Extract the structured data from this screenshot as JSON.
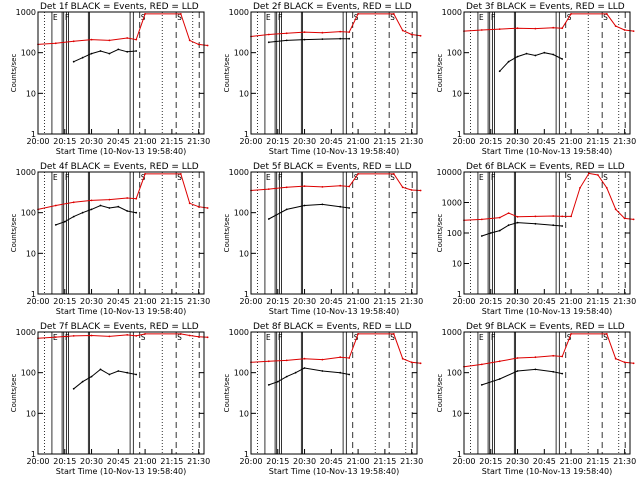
{
  "colors": {
    "events": "#000000",
    "lld": "#dd0000",
    "axis": "#000000",
    "background": "#ffffff"
  },
  "shared": {
    "xlabel": "Start Time (10-Nov-13 19:58:40)",
    "ylabel": "Counts/sec",
    "x_tick_labels": [
      "20:00",
      "20:15",
      "20:30",
      "20:45",
      "21:00",
      "21:15",
      "21:30"
    ],
    "x_range_hours": [
      20.0,
      21.55
    ],
    "ylim": [
      1,
      1000
    ],
    "y_scale": "log",
    "y_tick_labels": [
      "1",
      "10",
      "100",
      "1000"
    ],
    "y_tick_labels_wide": [
      "1",
      "10",
      "100",
      "1000",
      "10000"
    ],
    "solid_vlines_hours": [
      20.13,
      20.225,
      20.24,
      20.265,
      20.285,
      20.47,
      20.48,
      20.86,
      20.89
    ],
    "dashed_vlines_hours": [
      20.95,
      21.29,
      21.505
    ],
    "dotted_vlines_hours": [
      20.06,
      21.16,
      21.445
    ],
    "marker_letters": [
      "E",
      "F",
      "S",
      "S"
    ]
  },
  "chart_data": [
    {
      "type": "line",
      "title": "Det 1f BLACK = Events, RED = LLD",
      "ylim": [
        1,
        1000
      ],
      "series": [
        {
          "name": "Events",
          "color": "#000000",
          "x": [
            "20:20",
            "20:25",
            "20:30",
            "20:35",
            "20:40",
            "20:45",
            "20:50",
            "20:55"
          ],
          "values": [
            60,
            75,
            95,
            110,
            95,
            120,
            105,
            110
          ]
        },
        {
          "name": "LLD",
          "color": "#dd0000",
          "x": [
            "20:00",
            "20:10",
            "20:20",
            "20:30",
            "20:40",
            "20:50",
            "20:55",
            "21:00",
            "21:20",
            "21:25",
            "21:30",
            "21:35"
          ],
          "values": [
            160,
            170,
            190,
            210,
            200,
            230,
            210,
            900,
            900,
            200,
            160,
            150
          ]
        }
      ]
    },
    {
      "type": "line",
      "title": "Det 2f BLACK = Events, RED = LLD",
      "ylim": [
        1,
        1000
      ],
      "series": [
        {
          "name": "Events",
          "color": "#000000",
          "x": [
            "20:10",
            "20:20",
            "20:30",
            "20:40",
            "20:50",
            "20:55"
          ],
          "values": [
            180,
            200,
            210,
            215,
            220,
            220
          ]
        },
        {
          "name": "LLD",
          "color": "#dd0000",
          "x": [
            "20:00",
            "20:10",
            "20:20",
            "20:30",
            "20:40",
            "20:50",
            "20:55",
            "21:00",
            "21:20",
            "21:25",
            "21:30",
            "21:35"
          ],
          "values": [
            250,
            280,
            300,
            320,
            310,
            330,
            320,
            900,
            900,
            350,
            280,
            260
          ]
        }
      ]
    },
    {
      "type": "line",
      "title": "Det 3f BLACK = Events, RED = LLD",
      "ylim": [
        1,
        1000
      ],
      "series": [
        {
          "name": "Events",
          "color": "#000000",
          "x": [
            "20:20",
            "20:25",
            "20:30",
            "20:35",
            "20:40",
            "20:45",
            "20:50",
            "20:55"
          ],
          "values": [
            35,
            60,
            80,
            95,
            85,
            100,
            90,
            70
          ]
        },
        {
          "name": "LLD",
          "color": "#dd0000",
          "x": [
            "20:00",
            "20:10",
            "20:20",
            "20:30",
            "20:40",
            "20:50",
            "20:55",
            "21:00",
            "21:20",
            "21:25",
            "21:30",
            "21:35"
          ],
          "values": [
            340,
            360,
            380,
            400,
            390,
            410,
            400,
            900,
            900,
            450,
            360,
            340
          ]
        }
      ]
    },
    {
      "type": "line",
      "title": "Det 4f BLACK = Events, RED = LLD",
      "ylim": [
        1,
        1000
      ],
      "series": [
        {
          "name": "Events",
          "color": "#000000",
          "x": [
            "20:10",
            "20:15",
            "20:20",
            "20:25",
            "20:30",
            "20:35",
            "20:40",
            "20:45",
            "20:50",
            "20:55"
          ],
          "values": [
            50,
            60,
            80,
            100,
            120,
            150,
            130,
            140,
            110,
            100
          ]
        },
        {
          "name": "LLD",
          "color": "#dd0000",
          "x": [
            "20:00",
            "20:10",
            "20:20",
            "20:30",
            "20:40",
            "20:50",
            "20:55",
            "21:00",
            "21:20",
            "21:25",
            "21:30",
            "21:35"
          ],
          "values": [
            120,
            150,
            180,
            200,
            210,
            230,
            220,
            900,
            900,
            170,
            140,
            130
          ]
        }
      ]
    },
    {
      "type": "line",
      "title": "Det 5f BLACK = Events, RED = LLD",
      "ylim": [
        1,
        1000
      ],
      "series": [
        {
          "name": "Events",
          "color": "#000000",
          "x": [
            "20:10",
            "20:20",
            "20:30",
            "20:40",
            "20:50",
            "20:55"
          ],
          "values": [
            70,
            120,
            150,
            160,
            140,
            130
          ]
        },
        {
          "name": "LLD",
          "color": "#dd0000",
          "x": [
            "20:00",
            "20:10",
            "20:20",
            "20:30",
            "20:40",
            "20:50",
            "20:55",
            "21:00",
            "21:20",
            "21:25",
            "21:30",
            "21:35"
          ],
          "values": [
            350,
            380,
            420,
            450,
            430,
            460,
            440,
            900,
            900,
            420,
            360,
            350
          ]
        }
      ]
    },
    {
      "type": "line",
      "title": "Det 6f BLACK = Events, RED = LLD",
      "ylim": [
        1,
        10000
      ],
      "series": [
        {
          "name": "Events",
          "color": "#000000",
          "x": [
            "20:10",
            "20:15",
            "20:20",
            "20:25",
            "20:30",
            "20:40",
            "20:50",
            "20:55"
          ],
          "values": [
            80,
            100,
            120,
            180,
            220,
            200,
            180,
            170
          ]
        },
        {
          "name": "LLD",
          "color": "#dd0000",
          "x": [
            "20:00",
            "20:10",
            "20:20",
            "20:25",
            "20:30",
            "20:40",
            "20:50",
            "20:55",
            "21:00",
            "21:05",
            "21:10",
            "21:15",
            "21:20",
            "21:25",
            "21:30",
            "21:35"
          ],
          "values": [
            260,
            280,
            320,
            450,
            340,
            350,
            360,
            350,
            350,
            3000,
            9000,
            8000,
            3000,
            600,
            300,
            280
          ]
        }
      ]
    },
    {
      "type": "line",
      "title": "Det 7f BLACK = Events, RED = LLD",
      "ylim": [
        1,
        1000
      ],
      "series": [
        {
          "name": "Events",
          "color": "#000000",
          "x": [
            "20:20",
            "20:25",
            "20:30",
            "20:35",
            "20:40",
            "20:45",
            "20:50",
            "20:55"
          ],
          "values": [
            40,
            60,
            80,
            120,
            90,
            110,
            100,
            90
          ]
        },
        {
          "name": "LLD",
          "color": "#dd0000",
          "x": [
            "20:00",
            "20:10",
            "20:20",
            "20:30",
            "20:40",
            "20:50",
            "20:55",
            "21:00",
            "21:20",
            "21:25",
            "21:30",
            "21:35"
          ],
          "values": [
            700,
            750,
            800,
            820,
            780,
            850,
            800,
            900,
            900,
            820,
            760,
            740
          ]
        }
      ]
    },
    {
      "type": "line",
      "title": "Det 8f BLACK = Events, RED = LLD",
      "ylim": [
        1,
        1000
      ],
      "series": [
        {
          "name": "Events",
          "color": "#000000",
          "x": [
            "20:10",
            "20:15",
            "20:20",
            "20:25",
            "20:30",
            "20:40",
            "20:50",
            "20:55"
          ],
          "values": [
            50,
            60,
            80,
            100,
            130,
            110,
            100,
            90
          ]
        },
        {
          "name": "LLD",
          "color": "#dd0000",
          "x": [
            "20:00",
            "20:10",
            "20:20",
            "20:30",
            "20:40",
            "20:50",
            "20:55",
            "21:00",
            "21:20",
            "21:25",
            "21:30",
            "21:35"
          ],
          "values": [
            180,
            190,
            200,
            220,
            210,
            240,
            230,
            900,
            900,
            220,
            180,
            170
          ]
        }
      ]
    },
    {
      "type": "line",
      "title": "Det 9f BLACK = Events, RED = LLD",
      "ylim": [
        1,
        1000
      ],
      "series": [
        {
          "name": "Events",
          "color": "#000000",
          "x": [
            "20:10",
            "20:20",
            "20:30",
            "20:40",
            "20:50",
            "20:55"
          ],
          "values": [
            50,
            70,
            110,
            120,
            105,
            95
          ]
        },
        {
          "name": "LLD",
          "color": "#dd0000",
          "x": [
            "20:00",
            "20:10",
            "20:20",
            "20:30",
            "20:40",
            "20:50",
            "20:55",
            "21:00",
            "21:20",
            "21:25",
            "21:30",
            "21:35"
          ],
          "values": [
            140,
            160,
            190,
            230,
            240,
            260,
            250,
            900,
            900,
            220,
            180,
            170
          ]
        }
      ]
    }
  ]
}
